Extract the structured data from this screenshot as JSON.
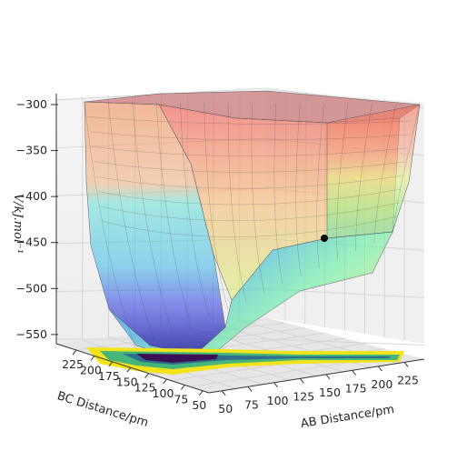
{
  "chart_data": {
    "type": "surface3d",
    "title": "",
    "xlabel": "AB Distance/pm",
    "ylabel": "BC Distance/pm",
    "zlabel": "V/kJ.mol⁻¹",
    "x_ticks": [
      "50",
      "75",
      "100",
      "125",
      "150",
      "175",
      "200",
      "225"
    ],
    "y_ticks": [
      "225",
      "200",
      "175",
      "150",
      "125",
      "100",
      "75",
      "50"
    ],
    "z_ticks": [
      "-300",
      "-350",
      "-400",
      "-450",
      "-500",
      "-550"
    ],
    "xlim": [
      50,
      240
    ],
    "ylim": [
      50,
      240
    ],
    "zlim": [
      -560,
      -300
    ],
    "grid": true,
    "surface_colormap": "jet",
    "contour_floor_colormap": "viridis",
    "view": "3d-perspective",
    "point": {
      "x": 240,
      "y": 74,
      "z": -452,
      "color": "#000000"
    }
  }
}
